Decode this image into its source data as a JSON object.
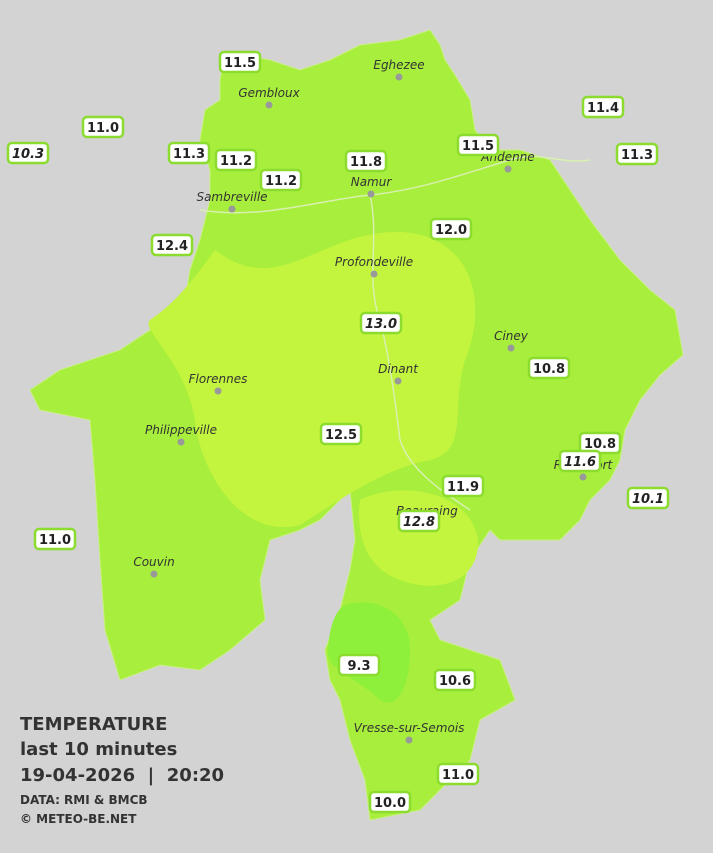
{
  "legend": {
    "title": "TEMPERATURE",
    "subtitle": "last 10 minutes",
    "datetime": "19-04-2026  |  20:20",
    "source": "DATA: RMI & BMCB",
    "copyright": "© METEO-BE.NET"
  },
  "cities": [
    "Eghezee",
    "Gembloux",
    "Andenne",
    "Namur",
    "Sambreville",
    "Profondeville",
    "Ciney",
    "Florennes",
    "Dinant",
    "Philippeville",
    "Rochefort",
    "Beauraing",
    "Couvin",
    "Vresse-sur-Semois"
  ],
  "stations": [
    {
      "label": "11.5",
      "italic": false
    },
    {
      "label": "11.0",
      "italic": false
    },
    {
      "label": "10.3",
      "italic": true
    },
    {
      "label": "11.3",
      "italic": false
    },
    {
      "label": "11.2",
      "italic": false
    },
    {
      "label": "11.2",
      "italic": false
    },
    {
      "label": "11.8",
      "italic": false
    },
    {
      "label": "11.5",
      "italic": false
    },
    {
      "label": "11.4",
      "italic": false
    },
    {
      "label": "11.3",
      "italic": false
    },
    {
      "label": "12.4",
      "italic": false
    },
    {
      "label": "12.0",
      "italic": false
    },
    {
      "label": "13.0",
      "italic": true
    },
    {
      "label": "10.8",
      "italic": false
    },
    {
      "label": "12.5",
      "italic": false
    },
    {
      "label": "10.8",
      "italic": false
    },
    {
      "label": "11.6",
      "italic": true
    },
    {
      "label": "11.9",
      "italic": false
    },
    {
      "label": "10.1",
      "italic": true
    },
    {
      "label": "12.8",
      "italic": true
    },
    {
      "label": "11.0",
      "italic": false
    },
    {
      "label": "9.3",
      "italic": false
    },
    {
      "label": "10.6",
      "italic": false
    },
    {
      "label": "11.0",
      "italic": false
    },
    {
      "label": "10.0",
      "italic": false
    }
  ]
}
